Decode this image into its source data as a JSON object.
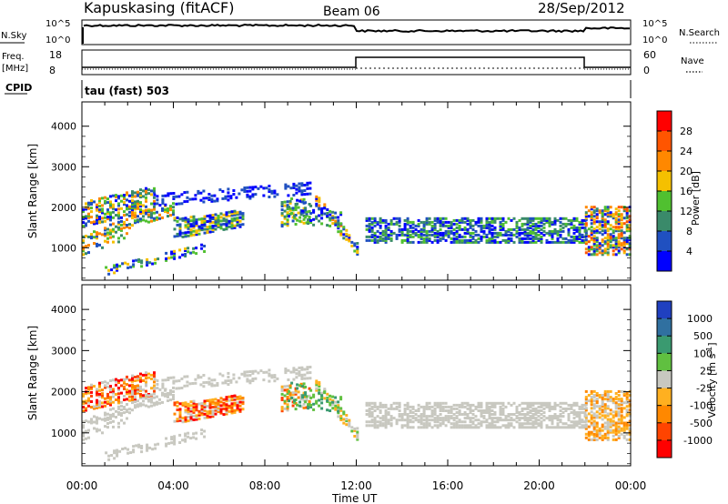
{
  "header": {
    "station": "Kapuskasing (fitACF)",
    "beam": "Beam 06",
    "date": "28/Sep/2012"
  },
  "top_panel": {
    "left_label": "N.Sky",
    "left_ticks": [
      "10^5",
      "10^0"
    ],
    "right_label": "N.Search",
    "right_ticks": [
      "10^5",
      "10^0"
    ]
  },
  "freq_panel": {
    "left_label_1": "Freq.",
    "left_label_2": "[MHz]",
    "left_ticks": [
      "18",
      "8"
    ],
    "right_label": "Nave",
    "right_ticks": [
      "60",
      "0"
    ],
    "cpid_label": "CPID",
    "cpid_text": "tau (fast) 503"
  },
  "chart_data": [
    {
      "type": "heatmap",
      "ylabel": "Slant Range [km]",
      "ylim": [
        200,
        4600
      ],
      "yticks": [
        1000,
        2000,
        3000,
        4000
      ],
      "xticks": [
        "00:00",
        "04:00",
        "08:00",
        "12:00",
        "16:00",
        "20:00",
        "00:00"
      ],
      "colorbar": {
        "label": "Power [dB]",
        "ticks": [
          "28",
          "24",
          "20",
          "16",
          "12",
          "8",
          "4"
        ],
        "colors": [
          "#ff0000",
          "#ff5500",
          "#ff8800",
          "#f5c000",
          "#50c030",
          "#3a8a6a",
          "#2050c0",
          "#0000ff"
        ]
      }
    },
    {
      "type": "heatmap",
      "ylabel": "Slant Range [km]",
      "ylim": [
        200,
        4600
      ],
      "yticks": [
        1000,
        2000,
        3000,
        4000
      ],
      "xticks": [
        "00:00",
        "04:00",
        "08:00",
        "12:00",
        "16:00",
        "20:00",
        "00:00"
      ],
      "xlabel": "Time UT",
      "colorbar": {
        "label": "Velocity [m s",
        "label_sup": "-1",
        "label_end": "]",
        "ticks": [
          "1000",
          "500",
          "100",
          "25",
          "-25",
          "-100",
          "-500",
          "-1000"
        ],
        "colors": [
          "#2040c0",
          "#3070a0",
          "#3a9a70",
          "#60c040",
          "#c8c8c0",
          "#ffb020",
          "#ff8800",
          "#ff4400",
          "#ff0000"
        ]
      }
    }
  ]
}
